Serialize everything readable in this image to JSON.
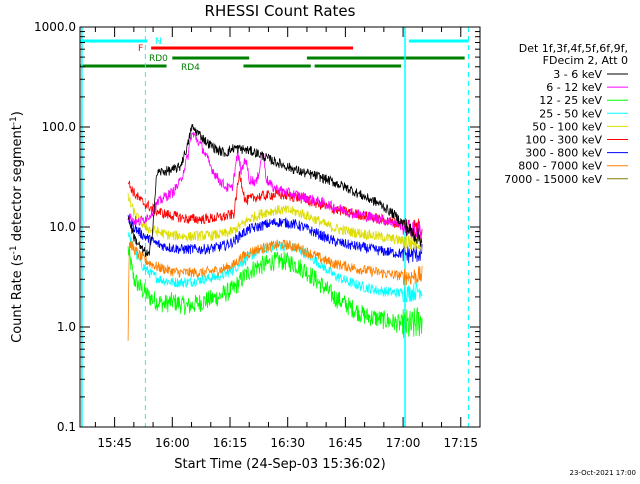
{
  "chart_data": {
    "type": "line",
    "title": "RHESSI Count Rates",
    "xlabel": "Start Time (24-Sep-03 15:36:02)",
    "ylabel": "Count Rate (s",
    "ylabel_sup": "-1",
    "ylabel_rest": " detector segment",
    "ylabel_sup2": "-1",
    "ylabel_end": ")",
    "x_unit": "minutes since 15:36",
    "xlim": [
      0,
      104
    ],
    "ylim": [
      0.1,
      1000
    ],
    "yscale": "log",
    "x_ticks": [
      {
        "m": 9,
        "label": "15:45"
      },
      {
        "m": 24,
        "label": "16:00"
      },
      {
        "m": 39,
        "label": "16:15"
      },
      {
        "m": 54,
        "label": "16:30"
      },
      {
        "m": 69,
        "label": "16:45"
      },
      {
        "m": 84,
        "label": "17:00"
      },
      {
        "m": 99,
        "label": "17:15"
      }
    ],
    "y_ticks": [
      {
        "v": 0.1,
        "label": "0.1"
      },
      {
        "v": 1,
        "label": "1.0"
      },
      {
        "v": 10,
        "label": "10.0"
      },
      {
        "v": 100,
        "label": "100.0"
      },
      {
        "v": 1000,
        "label": "1000.0"
      }
    ],
    "legend_header": [
      "Det 1f,3f,4f,5f,6f,9f,",
      "FDecim 2, Att 0"
    ],
    "legend_position": "top-right-outside",
    "series": [
      {
        "name": "3 - 6 keV",
        "color": "#000000",
        "points": [
          [
            12.5,
            13
          ],
          [
            14,
            8
          ],
          [
            16,
            6
          ],
          [
            18,
            5.2
          ],
          [
            18.8,
            9
          ],
          [
            20,
            35
          ],
          [
            24,
            37
          ],
          [
            26,
            40
          ],
          [
            28,
            65
          ],
          [
            29,
            100
          ],
          [
            31,
            85
          ],
          [
            33,
            70
          ],
          [
            36,
            58
          ],
          [
            38,
            55
          ],
          [
            40,
            62
          ],
          [
            42,
            60
          ],
          [
            44,
            58
          ],
          [
            46,
            55
          ],
          [
            49,
            48
          ],
          [
            54,
            40
          ],
          [
            58,
            35
          ],
          [
            62,
            32
          ],
          [
            66,
            28
          ],
          [
            70,
            24
          ],
          [
            74,
            20
          ],
          [
            78,
            17
          ],
          [
            82,
            13
          ],
          [
            86,
            9
          ],
          [
            89,
            7.5
          ]
        ]
      },
      {
        "name": "6 - 12 keV",
        "color": "#ff00ff",
        "points": [
          [
            12.5,
            13
          ],
          [
            15,
            11
          ],
          [
            18,
            13
          ],
          [
            20,
            17
          ],
          [
            22,
            20
          ],
          [
            24,
            22
          ],
          [
            26,
            28
          ],
          [
            28,
            50
          ],
          [
            29,
            85
          ],
          [
            30,
            80
          ],
          [
            32,
            60
          ],
          [
            34,
            40
          ],
          [
            36,
            30
          ],
          [
            38,
            25
          ],
          [
            39.5,
            24
          ],
          [
            41,
            55
          ],
          [
            42,
            35
          ],
          [
            43,
            50
          ],
          [
            44,
            30
          ],
          [
            46,
            28
          ],
          [
            47.5,
            60
          ],
          [
            48.5,
            30
          ],
          [
            50,
            25
          ],
          [
            54,
            22
          ],
          [
            58,
            20
          ],
          [
            62,
            18
          ],
          [
            66,
            16
          ],
          [
            70,
            14
          ],
          [
            74,
            13
          ],
          [
            78,
            12
          ],
          [
            82,
            11
          ],
          [
            86,
            9.5
          ],
          [
            89,
            9
          ]
        ]
      },
      {
        "name": "12 - 25 keV",
        "color": "#00ff00",
        "points": [
          [
            12.5,
            6
          ],
          [
            14,
            3
          ],
          [
            16,
            2.4
          ],
          [
            18,
            2.0
          ],
          [
            20,
            1.8
          ],
          [
            22,
            1.7
          ],
          [
            24,
            1.8
          ],
          [
            26,
            1.7
          ],
          [
            28,
            1.6
          ],
          [
            30,
            1.7
          ],
          [
            32,
            1.8
          ],
          [
            34,
            1.9
          ],
          [
            36,
            2.0
          ],
          [
            38,
            2.2
          ],
          [
            40,
            2.4
          ],
          [
            42,
            3.0
          ],
          [
            44,
            3.6
          ],
          [
            46,
            4.0
          ],
          [
            48,
            4.2
          ],
          [
            50,
            4.5
          ],
          [
            52,
            4.6
          ],
          [
            54,
            4.5
          ],
          [
            56,
            4.2
          ],
          [
            58,
            3.8
          ],
          [
            60,
            3.3
          ],
          [
            62,
            2.8
          ],
          [
            64,
            2.4
          ],
          [
            66,
            2.0
          ],
          [
            70,
            1.6
          ],
          [
            74,
            1.3
          ],
          [
            78,
            1.2
          ],
          [
            82,
            1.1
          ],
          [
            86,
            1.0
          ],
          [
            89,
            1.2
          ]
        ]
      },
      {
        "name": "25 - 50 keV",
        "color": "#00ffff",
        "points": [
          [
            12.5,
            9
          ],
          [
            14,
            6
          ],
          [
            16,
            4.2
          ],
          [
            18,
            3.5
          ],
          [
            20,
            3.1
          ],
          [
            22,
            2.9
          ],
          [
            24,
            2.8
          ],
          [
            26,
            2.8
          ],
          [
            28,
            2.8
          ],
          [
            30,
            2.9
          ],
          [
            32,
            3.0
          ],
          [
            34,
            3.1
          ],
          [
            36,
            3.2
          ],
          [
            38,
            3.4
          ],
          [
            40,
            3.8
          ],
          [
            42,
            4.4
          ],
          [
            44,
            5.0
          ],
          [
            46,
            5.6
          ],
          [
            48,
            6.0
          ],
          [
            50,
            6.3
          ],
          [
            52,
            6.5
          ],
          [
            54,
            6.4
          ],
          [
            56,
            6.1
          ],
          [
            58,
            5.6
          ],
          [
            60,
            5.0
          ],
          [
            62,
            4.4
          ],
          [
            64,
            3.8
          ],
          [
            66,
            3.3
          ],
          [
            70,
            2.8
          ],
          [
            74,
            2.5
          ],
          [
            78,
            2.3
          ],
          [
            82,
            2.2
          ],
          [
            86,
            2.2
          ],
          [
            89,
            2.4
          ]
        ]
      },
      {
        "name": "50 - 100 keV",
        "color": "#dddd00",
        "points": [
          [
            12.5,
            20
          ],
          [
            14,
            14
          ],
          [
            16,
            11
          ],
          [
            18,
            9.5
          ],
          [
            20,
            9
          ],
          [
            22,
            8.5
          ],
          [
            24,
            8.2
          ],
          [
            26,
            8.2
          ],
          [
            28,
            8
          ],
          [
            30,
            8.1
          ],
          [
            32,
            8.2
          ],
          [
            34,
            8.2
          ],
          [
            36,
            8.4
          ],
          [
            38,
            8.6
          ],
          [
            40,
            9.2
          ],
          [
            42,
            10.5
          ],
          [
            44,
            12
          ],
          [
            46,
            13
          ],
          [
            48,
            14
          ],
          [
            50,
            14.5
          ],
          [
            52,
            14.8
          ],
          [
            54,
            14.6
          ],
          [
            56,
            14.2
          ],
          [
            58,
            13.5
          ],
          [
            60,
            12.5
          ],
          [
            62,
            11.5
          ],
          [
            64,
            10.5
          ],
          [
            66,
            9.8
          ],
          [
            70,
            9
          ],
          [
            74,
            8.5
          ],
          [
            78,
            8
          ],
          [
            82,
            7.5
          ],
          [
            86,
            7
          ],
          [
            89,
            7
          ]
        ]
      },
      {
        "name": "100 - 300 keV",
        "color": "#ff0000",
        "points": [
          [
            12.5,
            28
          ],
          [
            14,
            22
          ],
          [
            16,
            18
          ],
          [
            18,
            16
          ],
          [
            20,
            14.5
          ],
          [
            22,
            13.5
          ],
          [
            24,
            13
          ],
          [
            26,
            12.5
          ],
          [
            28,
            12
          ],
          [
            30,
            12
          ],
          [
            32,
            12
          ],
          [
            34,
            12.2
          ],
          [
            36,
            12.4
          ],
          [
            38,
            12.8
          ],
          [
            40,
            13.5
          ],
          [
            41.5,
            35
          ],
          [
            43,
            18
          ],
          [
            44,
            19
          ],
          [
            46,
            20
          ],
          [
            48,
            20.5
          ],
          [
            50,
            21
          ],
          [
            52,
            21
          ],
          [
            54,
            20.5
          ],
          [
            56,
            20
          ],
          [
            58,
            19
          ],
          [
            60,
            18
          ],
          [
            62,
            17
          ],
          [
            64,
            16
          ],
          [
            66,
            15
          ],
          [
            70,
            14
          ],
          [
            74,
            13
          ],
          [
            78,
            12
          ],
          [
            82,
            11
          ],
          [
            86,
            10
          ],
          [
            89,
            10
          ]
        ]
      },
      {
        "name": "300 - 800 keV",
        "color": "#0000ff",
        "points": [
          [
            12.5,
            12
          ],
          [
            14,
            10
          ],
          [
            16,
            8.5
          ],
          [
            18,
            7.5
          ],
          [
            20,
            6.8
          ],
          [
            22,
            6.4
          ],
          [
            24,
            6.2
          ],
          [
            26,
            6
          ],
          [
            28,
            6
          ],
          [
            30,
            6
          ],
          [
            32,
            6
          ],
          [
            34,
            6.1
          ],
          [
            36,
            6.3
          ],
          [
            38,
            6.6
          ],
          [
            40,
            7.2
          ],
          [
            42,
            8.5
          ],
          [
            44,
            9.5
          ],
          [
            46,
            10
          ],
          [
            48,
            10.5
          ],
          [
            50,
            11
          ],
          [
            52,
            11.2
          ],
          [
            54,
            11
          ],
          [
            56,
            10.6
          ],
          [
            58,
            10
          ],
          [
            60,
            9.2
          ],
          [
            62,
            8.5
          ],
          [
            64,
            7.8
          ],
          [
            66,
            7.2
          ],
          [
            70,
            6.6
          ],
          [
            74,
            6.2
          ],
          [
            78,
            5.8
          ],
          [
            82,
            5.5
          ],
          [
            86,
            5.3
          ],
          [
            89,
            5.5
          ]
        ]
      },
      {
        "name": "800 - 7000 keV",
        "color": "#ff8000",
        "points": [
          [
            12.5,
            0.75
          ],
          [
            12.8,
            7
          ],
          [
            14,
            6
          ],
          [
            16,
            5
          ],
          [
            18,
            4.4
          ],
          [
            20,
            4
          ],
          [
            22,
            3.8
          ],
          [
            24,
            3.6
          ],
          [
            26,
            3.5
          ],
          [
            28,
            3.5
          ],
          [
            30,
            3.5
          ],
          [
            32,
            3.5
          ],
          [
            34,
            3.6
          ],
          [
            36,
            3.7
          ],
          [
            38,
            3.9
          ],
          [
            40,
            4.2
          ],
          [
            42,
            5
          ],
          [
            44,
            5.5
          ],
          [
            46,
            6
          ],
          [
            48,
            6.2
          ],
          [
            50,
            6.5
          ],
          [
            52,
            6.7
          ],
          [
            54,
            6.6
          ],
          [
            56,
            6.3
          ],
          [
            58,
            5.9
          ],
          [
            60,
            5.4
          ],
          [
            62,
            5
          ],
          [
            64,
            4.6
          ],
          [
            66,
            4.3
          ],
          [
            70,
            4
          ],
          [
            74,
            3.7
          ],
          [
            78,
            3.5
          ],
          [
            82,
            3.3
          ],
          [
            86,
            3.2
          ],
          [
            89,
            3.3
          ]
        ]
      },
      {
        "name": "7000 - 15000 keV",
        "color": "#808000",
        "points": []
      }
    ],
    "attenuator_bars": [
      {
        "label": "N",
        "color": "#00ffff",
        "segments": [
          [
            0,
            17.5
          ],
          [
            85.5,
            101
          ]
        ]
      },
      {
        "label": "F",
        "color": "#ff0000",
        "segments": [
          [
            18.5,
            71
          ]
        ]
      },
      {
        "label": "RD0",
        "color": "#008000",
        "segments": [
          [
            24,
            44
          ],
          [
            59,
            100
          ]
        ]
      },
      {
        "label": "RD4",
        "color": "#008000",
        "segments": [
          [
            0,
            22.5
          ],
          [
            42.5,
            60
          ],
          [
            61,
            83.5
          ]
        ]
      }
    ],
    "vlines_solid": [
      0.5,
      84.5
    ],
    "vlines_dashed": [
      17,
      101
    ],
    "vline_color": "#00ffff",
    "footer_date": "23-Oct-2021 17:00"
  }
}
